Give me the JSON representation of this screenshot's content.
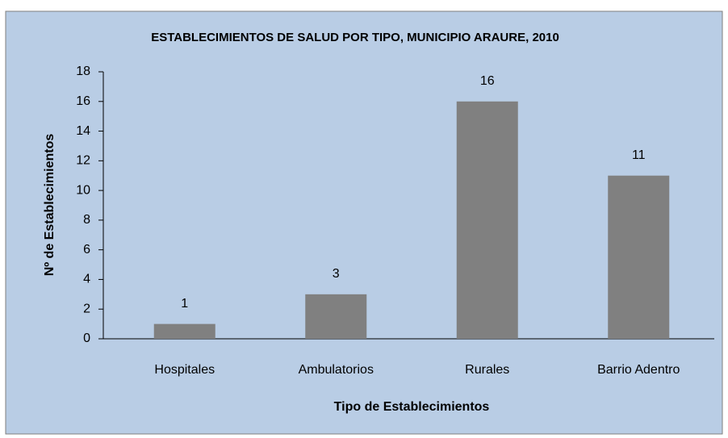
{
  "chart_data": {
    "type": "bar",
    "title": "ESTABLECIMIENTOS DE SALUD POR TIPO, MUNICIPIO ARAURE, 2010",
    "x_label": "Tipo de Establecimientos",
    "y_label": "Nº de Establecimientos",
    "categories": [
      "Hospitales",
      "Ambulatorios",
      "Rurales",
      "Barrio Adentro"
    ],
    "values": [
      1,
      3,
      16,
      11
    ],
    "color": "#808080",
    "ylim": [
      0,
      18
    ],
    "yticks": [
      0,
      2,
      4,
      6,
      8,
      10,
      12,
      14,
      16,
      18
    ],
    "grid": false
  }
}
